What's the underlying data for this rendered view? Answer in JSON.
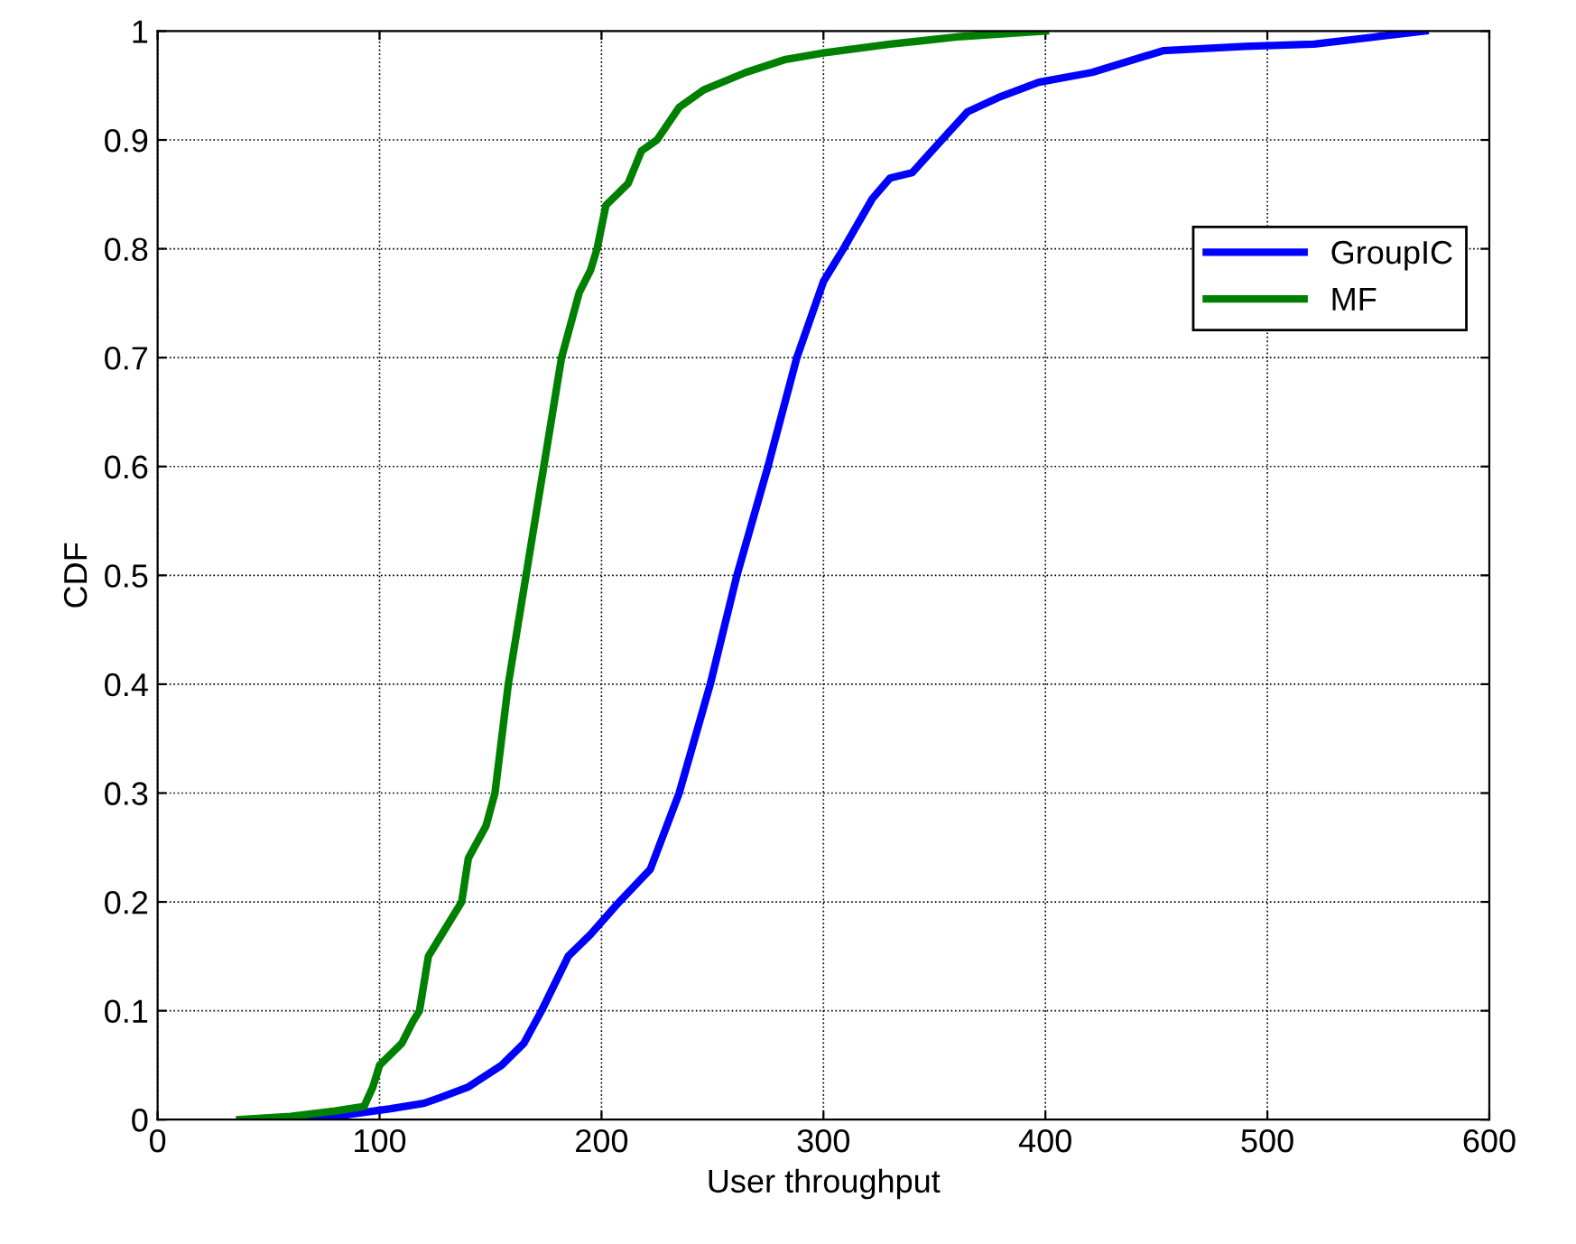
{
  "chart_data": {
    "type": "line",
    "xlabel": "User throughput",
    "ylabel": "CDF",
    "xlim": [
      0,
      600
    ],
    "xticks": [
      0,
      100,
      200,
      300,
      400,
      500,
      600
    ],
    "ylim": [
      0,
      1
    ],
    "yticks": [
      0,
      0.1,
      0.2,
      0.3,
      0.4,
      0.5,
      0.6,
      0.7,
      0.8,
      0.9,
      1
    ],
    "grid": true,
    "legend": "top right",
    "marker": "none",
    "line_style": "solid",
    "series": [
      {
        "name": "GroupIC",
        "color": "#0000ff",
        "x": [
          52,
          80,
          105,
          120,
          127,
          140,
          155,
          165,
          173,
          185,
          195,
          208,
          222,
          235,
          249,
          261,
          275,
          288,
          300,
          309,
          322,
          330,
          340,
          356,
          365,
          380,
          397,
          421,
          453,
          490,
          521,
          550,
          571
        ],
        "values": [
          0,
          0.003,
          0.01,
          0.015,
          0.02,
          0.03,
          0.05,
          0.07,
          0.1,
          0.15,
          0.17,
          0.2,
          0.23,
          0.3,
          0.4,
          0.5,
          0.6,
          0.7,
          0.77,
          0.8,
          0.846,
          0.865,
          0.87,
          0.906,
          0.926,
          0.94,
          0.953,
          0.962,
          0.982,
          0.986,
          0.988,
          0.995,
          1.0
        ]
      },
      {
        "name": "MF",
        "color": "#008000",
        "x": [
          37,
          60,
          80,
          93,
          97,
          100,
          110,
          115,
          118,
          122,
          128,
          137,
          140,
          148,
          152,
          158,
          166,
          174,
          178,
          182,
          190,
          195,
          198,
          202,
          212,
          218,
          225,
          235,
          246,
          265,
          283,
          300,
          330,
          362,
          400
        ],
        "values": [
          0,
          0.003,
          0.008,
          0.012,
          0.03,
          0.05,
          0.07,
          0.09,
          0.1,
          0.15,
          0.17,
          0.2,
          0.24,
          0.27,
          0.3,
          0.4,
          0.5,
          0.6,
          0.65,
          0.7,
          0.76,
          0.78,
          0.8,
          0.84,
          0.86,
          0.89,
          0.9,
          0.93,
          0.946,
          0.962,
          0.974,
          0.98,
          0.988,
          0.995,
          1.0
        ]
      }
    ]
  }
}
